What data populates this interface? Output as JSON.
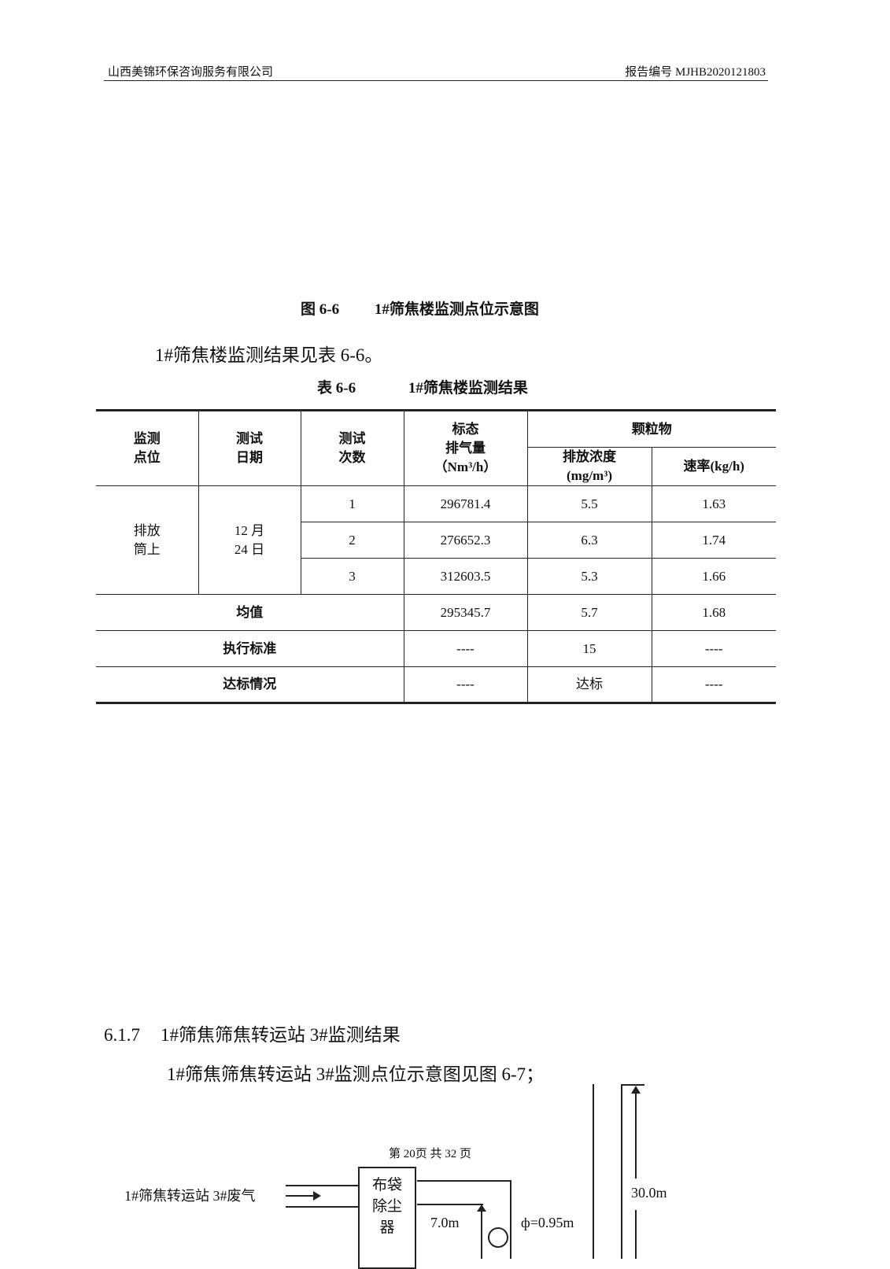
{
  "header": {
    "company": "山西美锦环保咨询服务有限公司",
    "report_no": "报告编号 MJHB2020121803"
  },
  "figure_caption": {
    "num": "图 6-6",
    "title": "1#筛焦楼监测点位示意图"
  },
  "intro": "1#筛焦楼监测结果见表 6-6。",
  "table_caption": {
    "num": "表 6-6",
    "title": "1#筛焦楼监测结果"
  },
  "table": {
    "headers": {
      "point": [
        "监测",
        "点位"
      ],
      "date": [
        "测试",
        "日期"
      ],
      "count": [
        "测试",
        "次数"
      ],
      "flow": [
        "标态",
        "排气量",
        "（Nm³/h）"
      ],
      "group": "颗粒物",
      "conc": [
        "排放浓度",
        "(mg/m³)"
      ],
      "rate": "速率(kg/h)"
    },
    "point": [
      "排放",
      "筒上"
    ],
    "date": [
      "12 月",
      "24 日"
    ],
    "rows": [
      {
        "n": "1",
        "flow": "296781.4",
        "conc": "5.5",
        "rate": "1.63"
      },
      {
        "n": "2",
        "flow": "276652.3",
        "conc": "6.3",
        "rate": "1.74"
      },
      {
        "n": "3",
        "flow": "312603.5",
        "conc": "5.3",
        "rate": "1.66"
      }
    ],
    "summary": [
      {
        "label": "均值",
        "flow": "295345.7",
        "conc": "5.7",
        "rate": "1.68"
      },
      {
        "label": "执行标准",
        "flow": "----",
        "conc": "15",
        "rate": "----"
      },
      {
        "label": "达标情况",
        "flow": "----",
        "conc": "达标",
        "rate": "----"
      }
    ]
  },
  "section": {
    "num": "6.1.7",
    "title": "1#筛焦筛焦转运站 3#监测结果"
  },
  "section_text": "1#筛焦筛焦转运站 3#监测点位示意图见图 6-7；",
  "footer": "第 20页  共 32 页",
  "diagram": {
    "input": "1#筛焦转运站 3#废气",
    "box": [
      "布袋",
      "除尘",
      "器"
    ],
    "height_small": "7.0m",
    "diameter": "ф=0.95m",
    "height_total": "30.0m"
  }
}
